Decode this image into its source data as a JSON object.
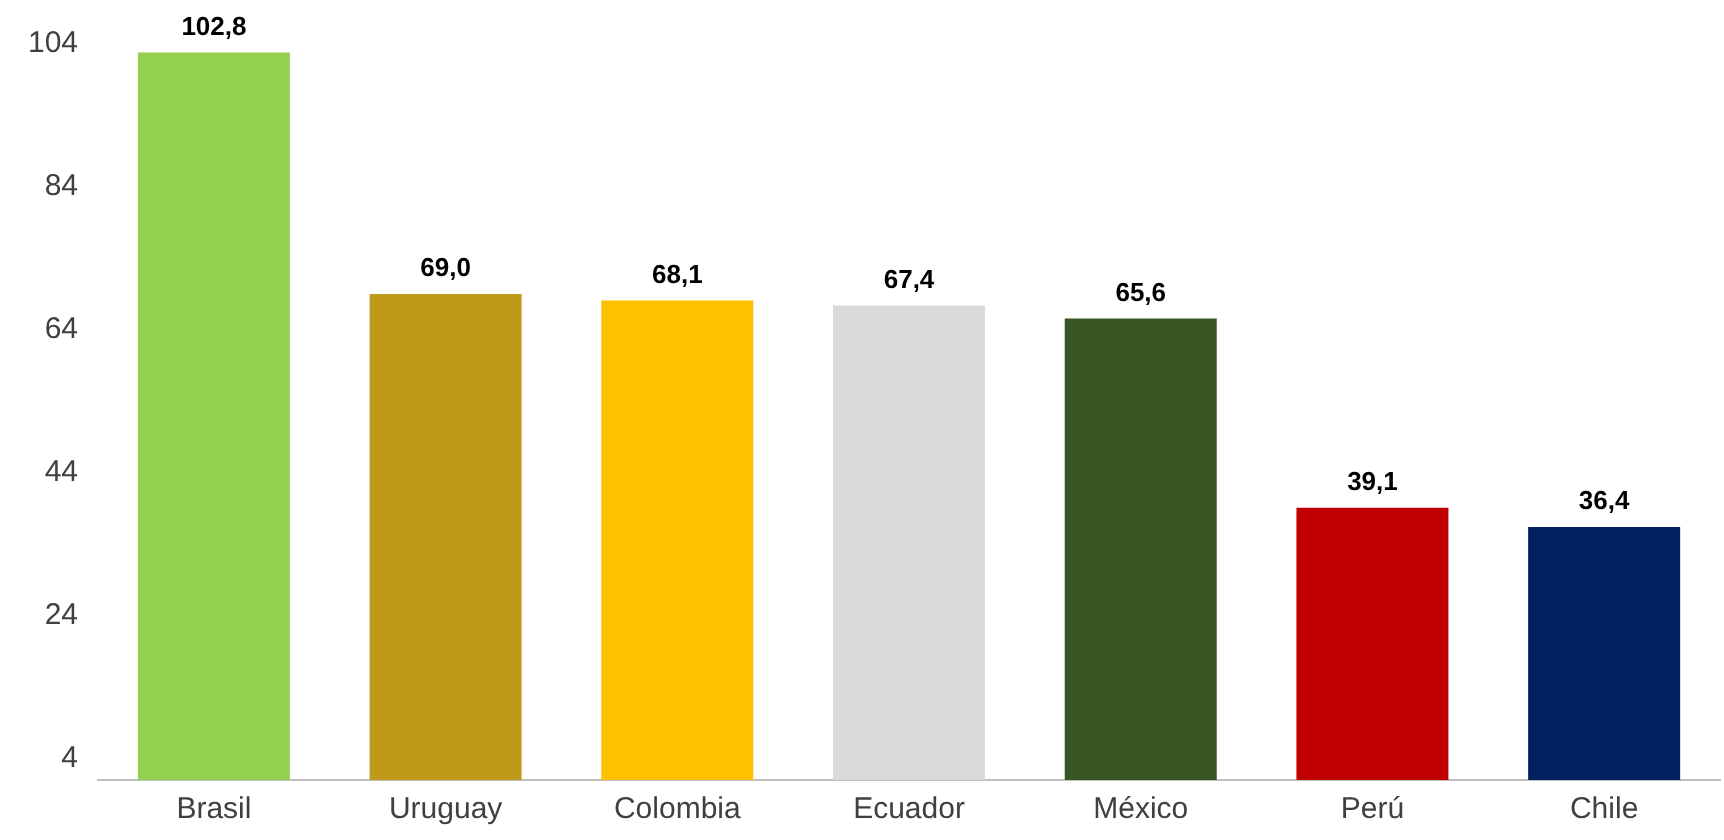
{
  "chart_data": {
    "type": "bar",
    "categories": [
      "Brasil",
      "Uruguay",
      "Colombia",
      "Ecuador",
      "México",
      "Perú",
      "Chile"
    ],
    "values": [
      102.8,
      69.0,
      68.1,
      67.4,
      65.6,
      39.1,
      36.4
    ],
    "colors": [
      "#92d050",
      "#bf9a1a",
      "#ffc000",
      "#d9d9d9",
      "#375623",
      "#c00000",
      "#002060"
    ],
    "value_labels": [
      "102,8",
      "69,0",
      "68,1",
      "67,4",
      "65,6",
      "39,1",
      "36,4"
    ],
    "ylim": [
      1,
      104
    ],
    "yticks": [
      4,
      24,
      44,
      64,
      84,
      104
    ],
    "grid": false,
    "legend": false
  }
}
